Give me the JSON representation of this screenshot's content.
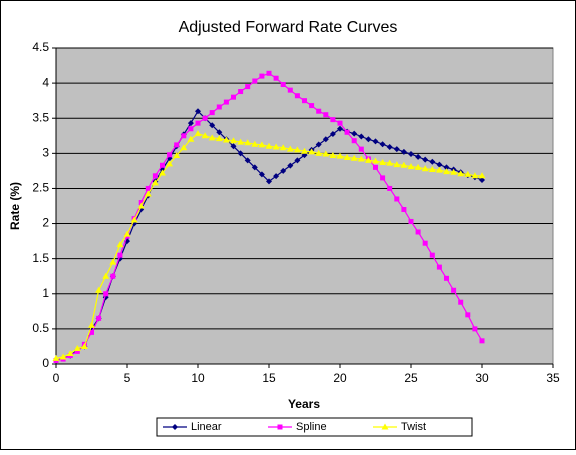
{
  "chart_data": {
    "type": "line",
    "title": "Adjusted Forward Rate Curves",
    "x_label": "Years",
    "y_label": "Rate (%)",
    "xlim": [
      0,
      35
    ],
    "xticks": [
      0,
      5,
      10,
      15,
      20,
      25,
      30,
      35
    ],
    "ylim": [
      0,
      4.5
    ],
    "yticks": [
      0,
      0.5,
      1,
      1.5,
      2,
      2.5,
      3,
      3.5,
      4,
      4.5
    ],
    "grid": true,
    "legend": "bottom",
    "x": [
      0,
      0.5,
      1,
      1.5,
      2,
      2.5,
      3,
      3.5,
      4,
      4.5,
      5,
      5.5,
      6,
      6.5,
      7,
      7.5,
      8,
      8.5,
      9,
      9.5,
      10,
      10.5,
      11,
      11.5,
      12,
      12.5,
      13,
      13.5,
      14,
      14.5,
      15,
      15.5,
      16,
      16.5,
      17,
      17.5,
      18,
      18.5,
      19,
      19.5,
      20,
      20.5,
      21,
      21.5,
      22,
      22.5,
      23,
      23.5,
      24,
      24.5,
      25,
      25.5,
      26,
      26.5,
      27,
      27.5,
      28,
      28.5,
      29,
      29.5,
      30
    ],
    "series": [
      {
        "name": "Linear",
        "color": "#000080",
        "marker": "diamond",
        "values": [
          0.05,
          0.08,
          0.12,
          0.2,
          0.25,
          0.5,
          0.65,
          0.95,
          1.25,
          1.5,
          1.75,
          2.0,
          2.2,
          2.4,
          2.6,
          2.77,
          2.93,
          3.1,
          3.27,
          3.43,
          3.6,
          3.5,
          3.4,
          3.3,
          3.2,
          3.1,
          3.0,
          2.9,
          2.8,
          2.7,
          2.6,
          2.675,
          2.75,
          2.825,
          2.9,
          2.975,
          3.05,
          3.125,
          3.2,
          3.275,
          3.35,
          3.31,
          3.28,
          3.24,
          3.2,
          3.17,
          3.13,
          3.09,
          3.06,
          3.02,
          2.99,
          2.95,
          2.91,
          2.88,
          2.84,
          2.8,
          2.77,
          2.73,
          2.69,
          2.66,
          2.62
        ]
      },
      {
        "name": "Spline",
        "color": "#ff00ff",
        "marker": "square",
        "values": [
          0.05,
          0.07,
          0.12,
          0.18,
          0.28,
          0.45,
          0.65,
          1.0,
          1.25,
          1.55,
          1.82,
          2.07,
          2.3,
          2.5,
          2.68,
          2.83,
          2.98,
          3.12,
          3.25,
          3.35,
          3.43,
          3.5,
          3.58,
          3.66,
          3.73,
          3.8,
          3.88,
          3.95,
          4.03,
          4.1,
          4.14,
          4.07,
          3.98,
          3.9,
          3.82,
          3.75,
          3.68,
          3.6,
          3.55,
          3.48,
          3.43,
          3.3,
          3.18,
          3.06,
          2.92,
          2.8,
          2.65,
          2.5,
          2.35,
          2.2,
          2.03,
          1.88,
          1.72,
          1.55,
          1.38,
          1.22,
          1.05,
          0.88,
          0.7,
          0.5,
          0.33
        ]
      },
      {
        "name": "Twist",
        "color": "#ffff00",
        "marker": "triangle",
        "values": [
          0.08,
          0.1,
          0.15,
          0.22,
          0.25,
          0.55,
          1.05,
          1.25,
          1.45,
          1.7,
          1.85,
          2.05,
          2.25,
          2.42,
          2.58,
          2.72,
          2.85,
          2.97,
          3.08,
          3.2,
          3.28,
          3.25,
          3.22,
          3.21,
          3.19,
          3.18,
          3.16,
          3.15,
          3.13,
          3.12,
          3.1,
          3.09,
          3.08,
          3.06,
          3.05,
          3.03,
          3.02,
          3.0,
          2.99,
          2.97,
          2.96,
          2.94,
          2.93,
          2.92,
          2.9,
          2.89,
          2.87,
          2.86,
          2.84,
          2.83,
          2.81,
          2.8,
          2.78,
          2.77,
          2.76,
          2.74,
          2.73,
          2.71,
          2.7,
          2.68,
          2.68
        ]
      }
    ]
  }
}
